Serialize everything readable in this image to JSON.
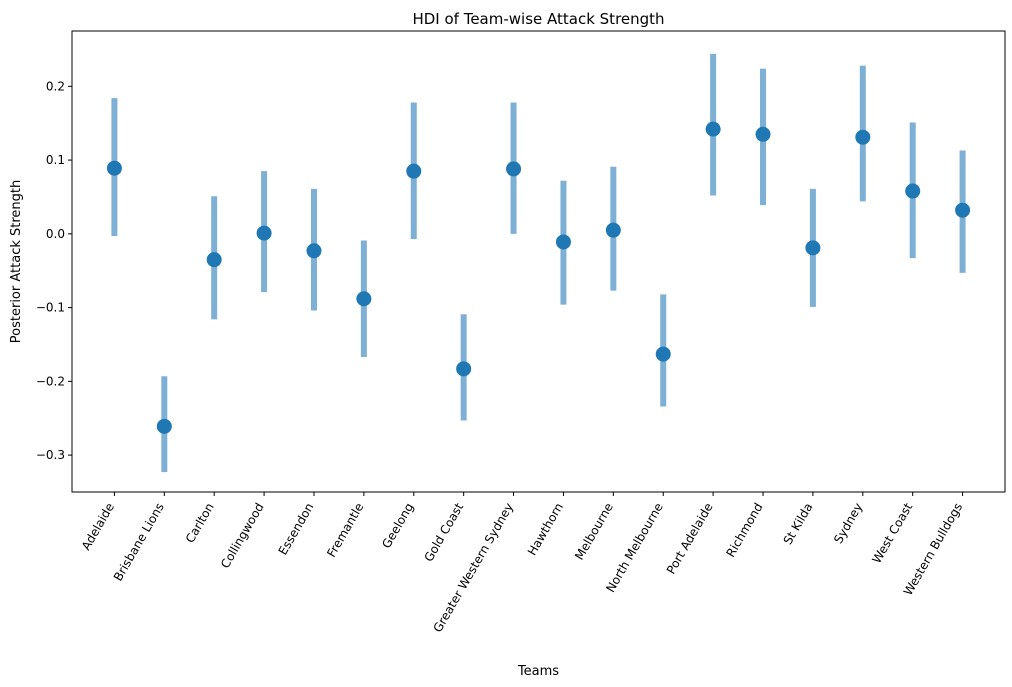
{
  "chart_data": {
    "type": "scatter",
    "title": "HDI of Team-wise Attack Strength",
    "xlabel": "Teams",
    "ylabel": "Posterior Attack Strength",
    "ylim": [
      -0.35,
      0.275
    ],
    "yticks": [
      -0.3,
      -0.2,
      -0.1,
      0.0,
      0.1,
      0.2
    ],
    "ytick_labels": [
      "−0.3",
      "−0.2",
      "−0.1",
      "0.0",
      "0.1",
      "0.2"
    ],
    "grid": false,
    "categories": [
      "Adelaide",
      "Brisbane Lions",
      "Carlton",
      "Collingwood",
      "Essendon",
      "Fremantle",
      "Geelong",
      "Gold Coast",
      "Greater Western Sydney",
      "Hawthorn",
      "Melbourne",
      "North Melbourne",
      "Port Adelaide",
      "Richmond",
      "St Kilda",
      "Sydney",
      "West Coast",
      "Western Bulldogs"
    ],
    "series": [
      {
        "values": [
          0.089,
          -0.261,
          -0.035,
          0.001,
          -0.023,
          -0.088,
          0.085,
          -0.183,
          0.088,
          -0.011,
          0.005,
          -0.163,
          0.142,
          0.135,
          -0.019,
          0.131,
          0.058,
          0.032
        ],
        "hdi_low": [
          -0.003,
          -0.323,
          -0.116,
          -0.079,
          -0.104,
          -0.167,
          -0.007,
          -0.253,
          0.0,
          -0.096,
          -0.077,
          -0.234,
          0.052,
          0.039,
          -0.099,
          0.044,
          -0.033,
          -0.053
        ],
        "hdi_high": [
          0.184,
          -0.193,
          0.051,
          0.085,
          0.061,
          -0.009,
          0.178,
          -0.109,
          0.178,
          0.072,
          0.091,
          -0.082,
          0.244,
          0.224,
          0.061,
          0.228,
          0.151,
          0.113
        ]
      }
    ],
    "colors": {
      "point": "#1f77b4",
      "interval": "#7eb0d5",
      "axis": "#000000"
    }
  }
}
